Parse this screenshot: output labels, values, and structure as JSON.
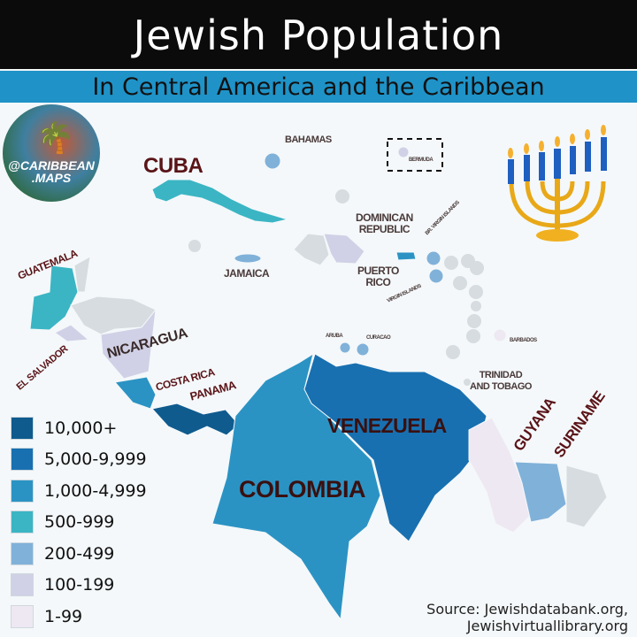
{
  "title": "Jewish Population",
  "subtitle": "In Central America and the Caribbean",
  "logo": {
    "text_line1": "@CARIBBEAN",
    "text_line2": ".MAPS",
    "icon": "palm-trees-icon"
  },
  "decoration": {
    "icon": "menorah-icon"
  },
  "legend": [
    {
      "label": "10,000+",
      "color": "#0f5b8e"
    },
    {
      "label": "5,000-9,999",
      "color": "#1870b0"
    },
    {
      "label": "1,000-4,999",
      "color": "#2b93c4"
    },
    {
      "label": "500-999",
      "color": "#3bb5c4"
    },
    {
      "label": "200-499",
      "color": "#80b1d9"
    },
    {
      "label": "100-199",
      "color": "#d0d1e6"
    },
    {
      "label": "1-99",
      "color": "#eee8f2"
    }
  ],
  "no_data_color": "#d6dcdf",
  "labels": {
    "cuba": "CUBA",
    "bahamas": "BAHAMAS",
    "bermuda": "BERMUDA",
    "dominican_line1": "DOMINICAN",
    "dominican_line2": "REPUBLIC",
    "bvi": "BR. VIRGIN ISLANDS",
    "puerto_line1": "PUERTO",
    "puerto_line2": "RICO",
    "usvi": "VIRGIN ISLANDS",
    "jamaica": "JAMAICA",
    "guatemala": "GUATEMALA",
    "el_salvador": "EL SALVADOR",
    "nicaragua": "NICARAGUA",
    "costa_rica": "COSTA RICA",
    "panama": "PANAMA",
    "aruba": "ARUBA",
    "curacao": "CURACAO",
    "barbados": "BARBADOS",
    "trinidad_line1": "TRINIDAD",
    "trinidad_line2": "AND TOBAGO",
    "venezuela": "VENEZUELA",
    "colombia": "COLOMBIA",
    "guyana": "GUYANA",
    "suriname": "SURINAME"
  },
  "countries": [
    {
      "name": "Cuba",
      "category": "500-999"
    },
    {
      "name": "Bahamas",
      "category": "200-499"
    },
    {
      "name": "Bermuda",
      "category": "100-199"
    },
    {
      "name": "Jamaica",
      "category": "200-499"
    },
    {
      "name": "Haiti",
      "category": "none"
    },
    {
      "name": "Dominican Republic",
      "category": "100-199"
    },
    {
      "name": "Puerto Rico",
      "category": "1,000-4,999"
    },
    {
      "name": "Br. Virgin Islands",
      "category": "200-499"
    },
    {
      "name": "Virgin Islands",
      "category": "200-499"
    },
    {
      "name": "Aruba",
      "category": "200-499"
    },
    {
      "name": "Curacao",
      "category": "200-499"
    },
    {
      "name": "Barbados",
      "category": "1-99"
    },
    {
      "name": "Guatemala",
      "category": "500-999"
    },
    {
      "name": "Belize",
      "category": "none"
    },
    {
      "name": "Honduras",
      "category": "none"
    },
    {
      "name": "El Salvador",
      "category": "100-199"
    },
    {
      "name": "Nicaragua",
      "category": "100-199"
    },
    {
      "name": "Costa Rica",
      "category": "1,000-4,999"
    },
    {
      "name": "Panama",
      "category": "10,000+"
    },
    {
      "name": "Colombia",
      "category": "1,000-4,999"
    },
    {
      "name": "Venezuela",
      "category": "5,000-9,999"
    },
    {
      "name": "Guyana",
      "category": "1-99"
    },
    {
      "name": "Suriname",
      "category": "200-499"
    },
    {
      "name": "French Guiana",
      "category": "none"
    }
  ],
  "source_line1": "Source: Jewishdatabank.org,",
  "source_line2": "Jewishvirtuallibrary.org"
}
